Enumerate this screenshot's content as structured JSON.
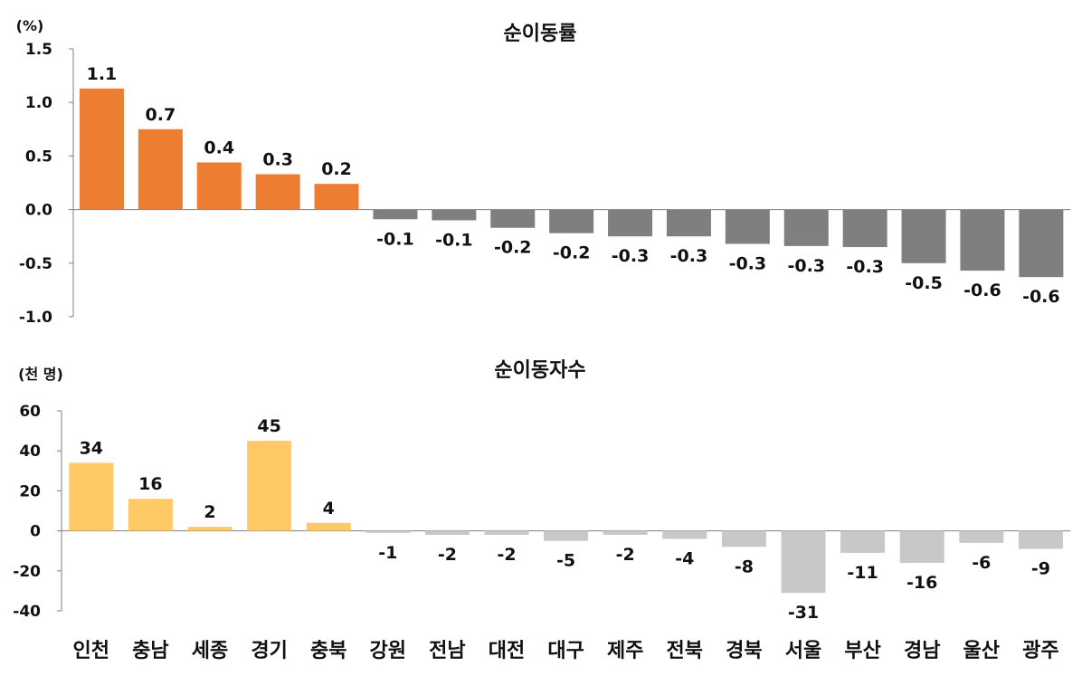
{
  "chart_data": [
    {
      "type": "bar",
      "title": "순이동률",
      "unit_label": "(%)",
      "categories": [
        "인천",
        "충남",
        "세종",
        "경기",
        "충북",
        "강원",
        "전남",
        "대전",
        "대구",
        "제주",
        "전북",
        "경북",
        "서울",
        "부산",
        "경남",
        "울산",
        "광주"
      ],
      "values": [
        1.13,
        0.75,
        0.44,
        0.33,
        0.24,
        -0.09,
        -0.1,
        -0.17,
        -0.22,
        -0.25,
        -0.25,
        -0.32,
        -0.34,
        -0.35,
        -0.5,
        -0.57,
        -0.63
      ],
      "data_labels": [
        "1.1",
        "0.7",
        "0.4",
        "0.3",
        "0.2",
        "-0.1",
        "-0.1",
        "-0.2",
        "-0.2",
        "-0.3",
        "-0.3",
        "-0.3",
        "-0.3",
        "-0.3",
        "-0.5",
        "-0.6",
        "-0.6"
      ],
      "ylim": [
        -1.0,
        1.5
      ],
      "yticks": [
        1.5,
        1.0,
        0.5,
        0.0,
        -0.5,
        -1.0
      ],
      "ytick_labels": [
        "1.5",
        "1.0",
        "0.5",
        "0.0",
        "-0.5",
        "-1.0"
      ],
      "colors": {
        "positive": "#ed7d31",
        "negative": "#7f7f7f"
      },
      "grid": false
    },
    {
      "type": "bar",
      "title": "순이동자수",
      "unit_label": "(천 명)",
      "categories": [
        "인천",
        "충남",
        "세종",
        "경기",
        "충북",
        "강원",
        "전남",
        "대전",
        "대구",
        "제주",
        "전북",
        "경북",
        "서울",
        "부산",
        "경남",
        "울산",
        "광주"
      ],
      "values": [
        34,
        16,
        2,
        45,
        4,
        -1,
        -2,
        -2,
        -5,
        -2,
        -4,
        -8,
        -31,
        -11,
        -16,
        -6,
        -9
      ],
      "data_labels": [
        "34",
        "16",
        "2",
        "45",
        "4",
        "-1",
        "-2",
        "-2",
        "-5",
        "-2",
        "-4",
        "-8",
        "-31",
        "-11",
        "-16",
        "-6",
        "-9"
      ],
      "ylim": [
        -40,
        60
      ],
      "yticks": [
        60,
        40,
        20,
        0,
        -20,
        -40
      ],
      "ytick_labels": [
        "60",
        "40",
        "20",
        "0",
        "-20",
        "-40"
      ],
      "colors": {
        "positive": "#ffc966",
        "negative": "#c8c8c8"
      },
      "grid": false
    }
  ]
}
